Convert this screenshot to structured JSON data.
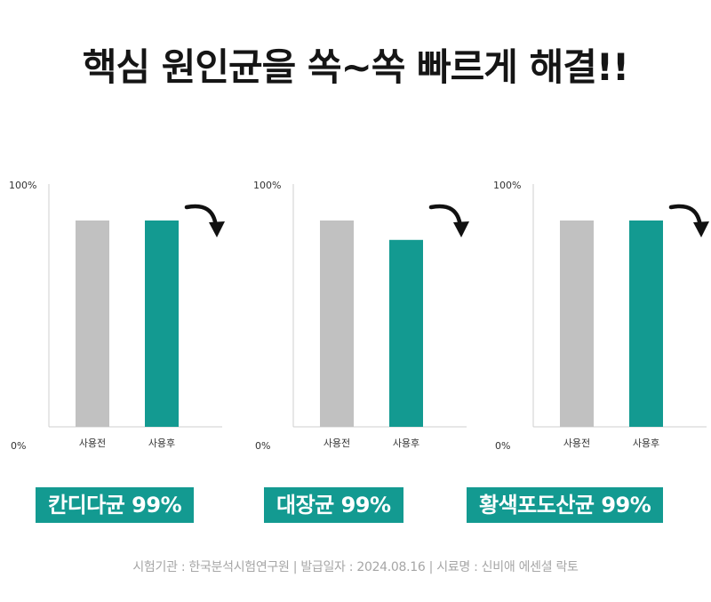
{
  "headline": "핵심 원인균을 쏙~쏙 빠르게 해결!!",
  "colors": {
    "before": "#c1c1c1",
    "after": "#139a91",
    "axis": "#cfcfcf",
    "arrow": "#111111"
  },
  "chart_data": [
    {
      "type": "bar",
      "categories": [
        "사용전",
        "사용후"
      ],
      "values": [
        85,
        85
      ],
      "ylim": [
        0,
        100
      ],
      "y_ticks": [
        "100%",
        "0%"
      ],
      "badge": "칸디다균 99%"
    },
    {
      "type": "bar",
      "categories": [
        "사용전",
        "사용후"
      ],
      "values": [
        85,
        77
      ],
      "ylim": [
        0,
        100
      ],
      "y_ticks": [
        "100%",
        "0%"
      ],
      "badge": "대장균 99%"
    },
    {
      "type": "bar",
      "categories": [
        "사용전",
        "사용후"
      ],
      "values": [
        85,
        85
      ],
      "ylim": [
        0,
        100
      ],
      "y_ticks": [
        "100%",
        "0%"
      ],
      "badge": "황색포도산균 99%"
    }
  ],
  "footnote": "시험기관 : 한국분석시험연구원 | 발급일자 : 2024.08.16 | 시료명 : 신비애 에센셜 락토"
}
